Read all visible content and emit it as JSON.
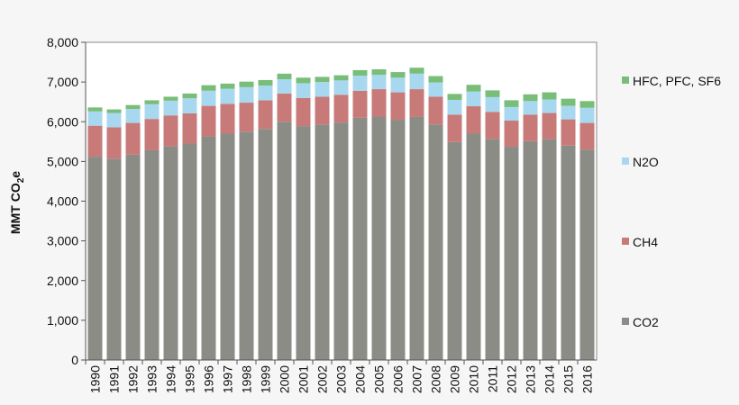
{
  "chart_data": {
    "type": "bar",
    "stacked": true,
    "title": "",
    "xlabel": "",
    "ylabel_parts": [
      "MMT CO",
      "2",
      "e"
    ],
    "ylim": [
      0,
      8000
    ],
    "yticks": [
      0,
      1000,
      2000,
      3000,
      4000,
      5000,
      6000,
      7000,
      8000
    ],
    "ytick_labels": [
      "0",
      "1,000",
      "2,000",
      "3,000",
      "4,000",
      "5,000",
      "6,000",
      "7,000",
      "8,000"
    ],
    "grid": false,
    "legend_position": "right",
    "categories": [
      "1990",
      "1991",
      "1992",
      "1993",
      "1994",
      "1995",
      "1996",
      "1997",
      "1998",
      "1999",
      "2000",
      "2001",
      "2002",
      "2003",
      "2004",
      "2005",
      "2006",
      "2007",
      "2008",
      "2009",
      "2010",
      "2011",
      "2012",
      "2013",
      "2014",
      "2015",
      "2016"
    ],
    "series": [
      {
        "name": "CO2",
        "color": "#8c8c86",
        "values": [
          5120,
          5070,
          5170,
          5290,
          5380,
          5450,
          5630,
          5700,
          5750,
          5820,
          6000,
          5890,
          5930,
          5980,
          6100,
          6130,
          6050,
          6120,
          5930,
          5490,
          5700,
          5570,
          5370,
          5510,
          5560,
          5400,
          5300
        ]
      },
      {
        "name": "CH4",
        "color": "#c87a78",
        "values": [
          780,
          790,
          800,
          780,
          780,
          760,
          770,
          750,
          730,
          720,
          710,
          710,
          700,
          700,
          680,
          690,
          690,
          700,
          700,
          690,
          690,
          680,
          660,
          670,
          660,
          660,
          670
        ]
      },
      {
        "name": "N2O",
        "color": "#a8d8f0",
        "values": [
          360,
          360,
          350,
          370,
          370,
          380,
          380,
          380,
          390,
          370,
          360,
          370,
          370,
          360,
          380,
          360,
          370,
          390,
          360,
          370,
          370,
          370,
          340,
          340,
          340,
          340,
          380
        ]
      },
      {
        "name": "HFC, PFC, SF6",
        "color": "#78be78",
        "values": [
          100,
          90,
          100,
          100,
          100,
          120,
          140,
          130,
          140,
          140,
          140,
          140,
          130,
          130,
          140,
          140,
          140,
          150,
          160,
          150,
          170,
          170,
          170,
          170,
          180,
          180,
          170
        ]
      }
    ]
  }
}
